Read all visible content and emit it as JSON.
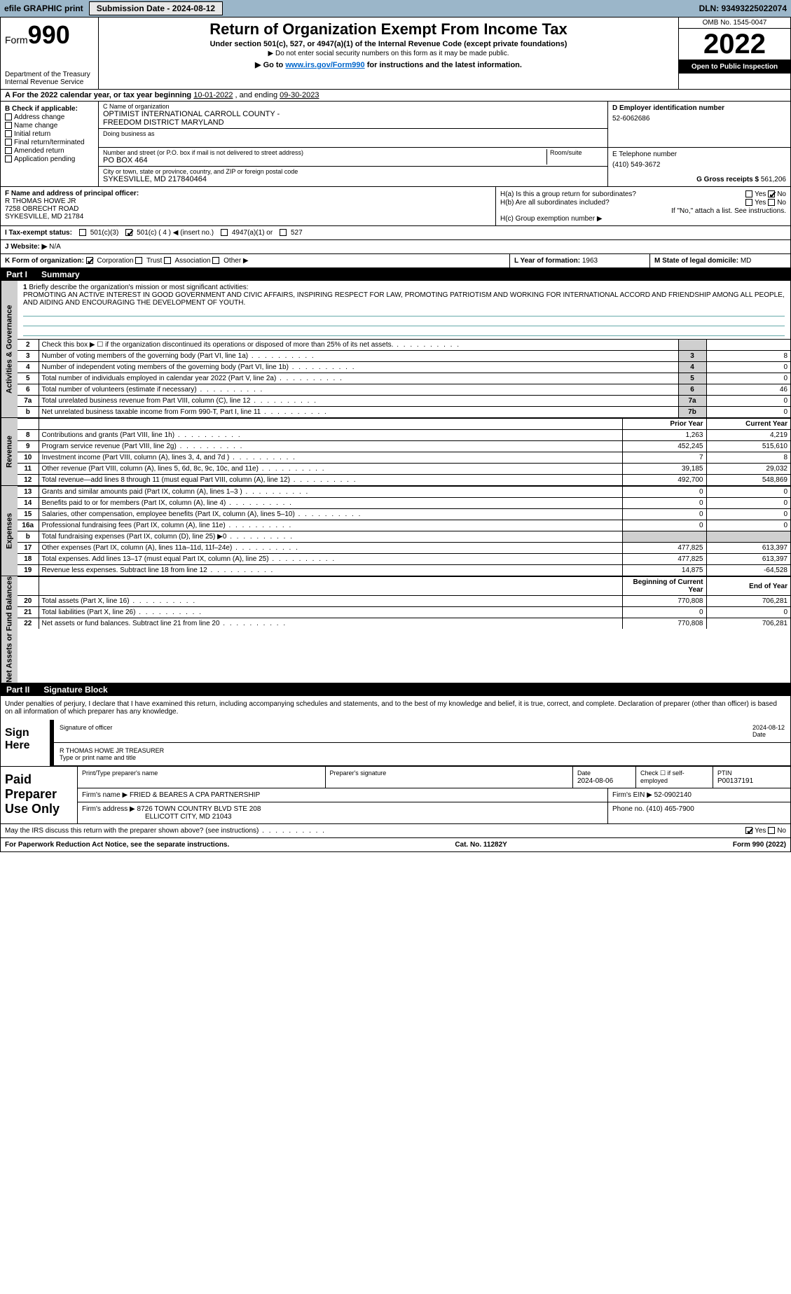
{
  "topbar": {
    "efile_label": "efile GRAPHIC print",
    "submission_label": "Submission Date - 2024-08-12",
    "dln_label": "DLN: 93493225022074"
  },
  "header": {
    "form_prefix": "Form",
    "form_number": "990",
    "dept1": "Department of the Treasury",
    "dept2": "Internal Revenue Service",
    "title": "Return of Organization Exempt From Income Tax",
    "subtitle": "Under section 501(c), 527, or 4947(a)(1) of the Internal Revenue Code (except private foundations)",
    "nosocial": "▶ Do not enter social security numbers on this form as it may be made public.",
    "goto_pre": "▶ Go to ",
    "goto_link": "www.irs.gov/Form990",
    "goto_post": " for instructions and the latest information.",
    "omb": "OMB No. 1545-0047",
    "year": "2022",
    "open": "Open to Public Inspection"
  },
  "rowA": {
    "label_pre": "A For the 2022 calendar year, or tax year beginning ",
    "begin": "10-01-2022",
    "mid": " , and ending ",
    "end": "09-30-2023"
  },
  "colB": {
    "header": "B Check if applicable:",
    "addr": "Address change",
    "name": "Name change",
    "initial": "Initial return",
    "final": "Final return/terminated",
    "amended": "Amended return",
    "app": "Application pending"
  },
  "colC": {
    "name_label": "C Name of organization",
    "name1": "OPTIMIST INTERNATIONAL CARROLL COUNTY -",
    "name2": "FREEDOM DISTRICT MARYLAND",
    "dba_label": "Doing business as",
    "addr_label": "Number and street (or P.O. box if mail is not delivered to street address)",
    "room_label": "Room/suite",
    "addr": "PO BOX 464",
    "city_label": "City or town, state or province, country, and ZIP or foreign postal code",
    "city": "SYKESVILLE, MD  217840464"
  },
  "colD": {
    "label": "D Employer identification number",
    "ein": "52-6062686"
  },
  "colE": {
    "label": "E Telephone number",
    "phone": "(410) 549-3672"
  },
  "colG": {
    "label": "G Gross receipts $",
    "amount": "561,206"
  },
  "colF": {
    "label": "F Name and address of principal officer:",
    "name": "R THOMAS HOWE JR",
    "addr": "7258 OBRECHT ROAD",
    "city": "SYKESVILLE, MD  21784"
  },
  "colH": {
    "h_a": "H(a)  Is this a group return for subordinates?",
    "h_a_yes": "Yes",
    "h_a_no": "No",
    "h_b": "H(b)  Are all subordinates included?",
    "h_b_note": "If \"No,\" attach a list. See instructions.",
    "h_c": "H(c)  Group exemption number ▶"
  },
  "rowI": {
    "label": "I  Tax-exempt status:",
    "c3": "501(c)(3)",
    "c": "501(c) ( 4 ) ◀ (insert no.)",
    "a1": "4947(a)(1) or",
    "s527": "527"
  },
  "rowJ": {
    "label": "J  Website: ▶",
    "value": "N/A"
  },
  "rowK": {
    "label": "K Form of organization:",
    "corp": "Corporation",
    "trust": "Trust",
    "assoc": "Association",
    "other": "Other ▶",
    "L_label": "L Year of formation:",
    "L_val": "1963",
    "M_label": "M State of legal domicile:",
    "M_val": "MD"
  },
  "part1": {
    "num": "Part I",
    "title": "Summary"
  },
  "tabs": {
    "gov": "Activities & Governance",
    "rev": "Revenue",
    "exp": "Expenses",
    "net": "Net Assets or Fund Balances"
  },
  "mission": {
    "num": "1",
    "label": "Briefly describe the organization's mission or most significant activities:",
    "text": "PROMOTING AN ACTIVE INTEREST IN GOOD GOVERNMENT AND CIVIC AFFAIRS, INSPIRING RESPECT FOR LAW, PROMOTING PATRIOTISM AND WORKING FOR INTERNATIONAL ACCORD AND FRIENDSHIP AMONG ALL PEOPLE, AND AIDING AND ENCOURAGING THE DEVELOPMENT OF YOUTH."
  },
  "gov_rows": [
    {
      "n": "2",
      "t": "Check this box ▶ ☐  if the organization discontinued its operations or disposed of more than 25% of its net assets.",
      "k": "",
      "v": ""
    },
    {
      "n": "3",
      "t": "Number of voting members of the governing body (Part VI, line 1a)",
      "k": "3",
      "v": "8"
    },
    {
      "n": "4",
      "t": "Number of independent voting members of the governing body (Part VI, line 1b)",
      "k": "4",
      "v": "0"
    },
    {
      "n": "5",
      "t": "Total number of individuals employed in calendar year 2022 (Part V, line 2a)",
      "k": "5",
      "v": "0"
    },
    {
      "n": "6",
      "t": "Total number of volunteers (estimate if necessary)",
      "k": "6",
      "v": "46"
    },
    {
      "n": "7a",
      "t": "Total unrelated business revenue from Part VIII, column (C), line 12",
      "k": "7a",
      "v": "0"
    },
    {
      "n": "b",
      "t": "Net unrelated business taxable income from Form 990-T, Part I, line 11",
      "k": "7b",
      "v": "0"
    }
  ],
  "year_hdr": {
    "prior": "Prior Year",
    "current": "Current Year"
  },
  "rev_rows": [
    {
      "n": "8",
      "t": "Contributions and grants (Part VIII, line 1h)",
      "p": "1,263",
      "c": "4,219"
    },
    {
      "n": "9",
      "t": "Program service revenue (Part VIII, line 2g)",
      "p": "452,245",
      "c": "515,610"
    },
    {
      "n": "10",
      "t": "Investment income (Part VIII, column (A), lines 3, 4, and 7d )",
      "p": "7",
      "c": "8"
    },
    {
      "n": "11",
      "t": "Other revenue (Part VIII, column (A), lines 5, 6d, 8c, 9c, 10c, and 11e)",
      "p": "39,185",
      "c": "29,032"
    },
    {
      "n": "12",
      "t": "Total revenue—add lines 8 through 11 (must equal Part VIII, column (A), line 12)",
      "p": "492,700",
      "c": "548,869"
    }
  ],
  "exp_rows": [
    {
      "n": "13",
      "t": "Grants and similar amounts paid (Part IX, column (A), lines 1–3 )",
      "p": "0",
      "c": "0"
    },
    {
      "n": "14",
      "t": "Benefits paid to or for members (Part IX, column (A), line 4)",
      "p": "0",
      "c": "0"
    },
    {
      "n": "15",
      "t": "Salaries, other compensation, employee benefits (Part IX, column (A), lines 5–10)",
      "p": "0",
      "c": "0"
    },
    {
      "n": "16a",
      "t": "Professional fundraising fees (Part IX, column (A), line 11e)",
      "p": "0",
      "c": "0"
    },
    {
      "n": "b",
      "t": "Total fundraising expenses (Part IX, column (D), line 25) ▶0",
      "p": "",
      "c": ""
    },
    {
      "n": "17",
      "t": "Other expenses (Part IX, column (A), lines 11a–11d, 11f–24e)",
      "p": "477,825",
      "c": "613,397"
    },
    {
      "n": "18",
      "t": "Total expenses. Add lines 13–17 (must equal Part IX, column (A), line 25)",
      "p": "477,825",
      "c": "613,397"
    },
    {
      "n": "19",
      "t": "Revenue less expenses. Subtract line 18 from line 12",
      "p": "14,875",
      "c": "-64,528"
    }
  ],
  "net_hdr": {
    "begin": "Beginning of Current Year",
    "end": "End of Year"
  },
  "net_rows": [
    {
      "n": "20",
      "t": "Total assets (Part X, line 16)",
      "p": "770,808",
      "c": "706,281"
    },
    {
      "n": "21",
      "t": "Total liabilities (Part X, line 26)",
      "p": "0",
      "c": "0"
    },
    {
      "n": "22",
      "t": "Net assets or fund balances. Subtract line 21 from line 20",
      "p": "770,808",
      "c": "706,281"
    }
  ],
  "part2": {
    "num": "Part II",
    "title": "Signature Block"
  },
  "sig": {
    "penalties": "Under penalties of perjury, I declare that I have examined this return, including accompanying schedules and statements, and to the best of my knowledge and belief, it is true, correct, and complete. Declaration of preparer (other than officer) is based on all information of which preparer has any knowledge.",
    "sign_here": "Sign Here",
    "sig_officer": "Signature of officer",
    "date_lbl": "Date",
    "date_val": "2024-08-12",
    "name": "R THOMAS HOWE JR  TREASURER",
    "type_lbl": "Type or print name and title"
  },
  "paid": {
    "title": "Paid Preparer Use Only",
    "print_lbl": "Print/Type preparer's name",
    "sig_lbl": "Preparer's signature",
    "date_lbl": "Date",
    "date": "2024-08-06",
    "check_lbl": "Check ☐ if self-employed",
    "ptin_lbl": "PTIN",
    "ptin": "P00137191",
    "firm_name_lbl": "Firm's name    ▶",
    "firm_name": "FRIED & BEARES A CPA PARTNERSHIP",
    "firm_ein_lbl": "Firm's EIN ▶",
    "firm_ein": "52-0902140",
    "firm_addr_lbl": "Firm's address ▶",
    "firm_addr1": "8726 TOWN COUNTRY BLVD STE 208",
    "firm_addr2": "ELLICOTT CITY, MD  21043",
    "phone_lbl": "Phone no.",
    "phone": "(410) 465-7900"
  },
  "may_discuss": {
    "text": "May the IRS discuss this return with the preparer shown above? (see instructions)",
    "yes": "Yes",
    "no": "No"
  },
  "footer": {
    "left": "For Paperwork Reduction Act Notice, see the separate instructions.",
    "mid": "Cat. No. 11282Y",
    "right": "Form 990 (2022)"
  },
  "colors": {
    "topbar_bg": "#9bb6c9",
    "gray": "#cfcfcf",
    "link": "#0066cc",
    "line_blue": "#6aa0a0"
  }
}
